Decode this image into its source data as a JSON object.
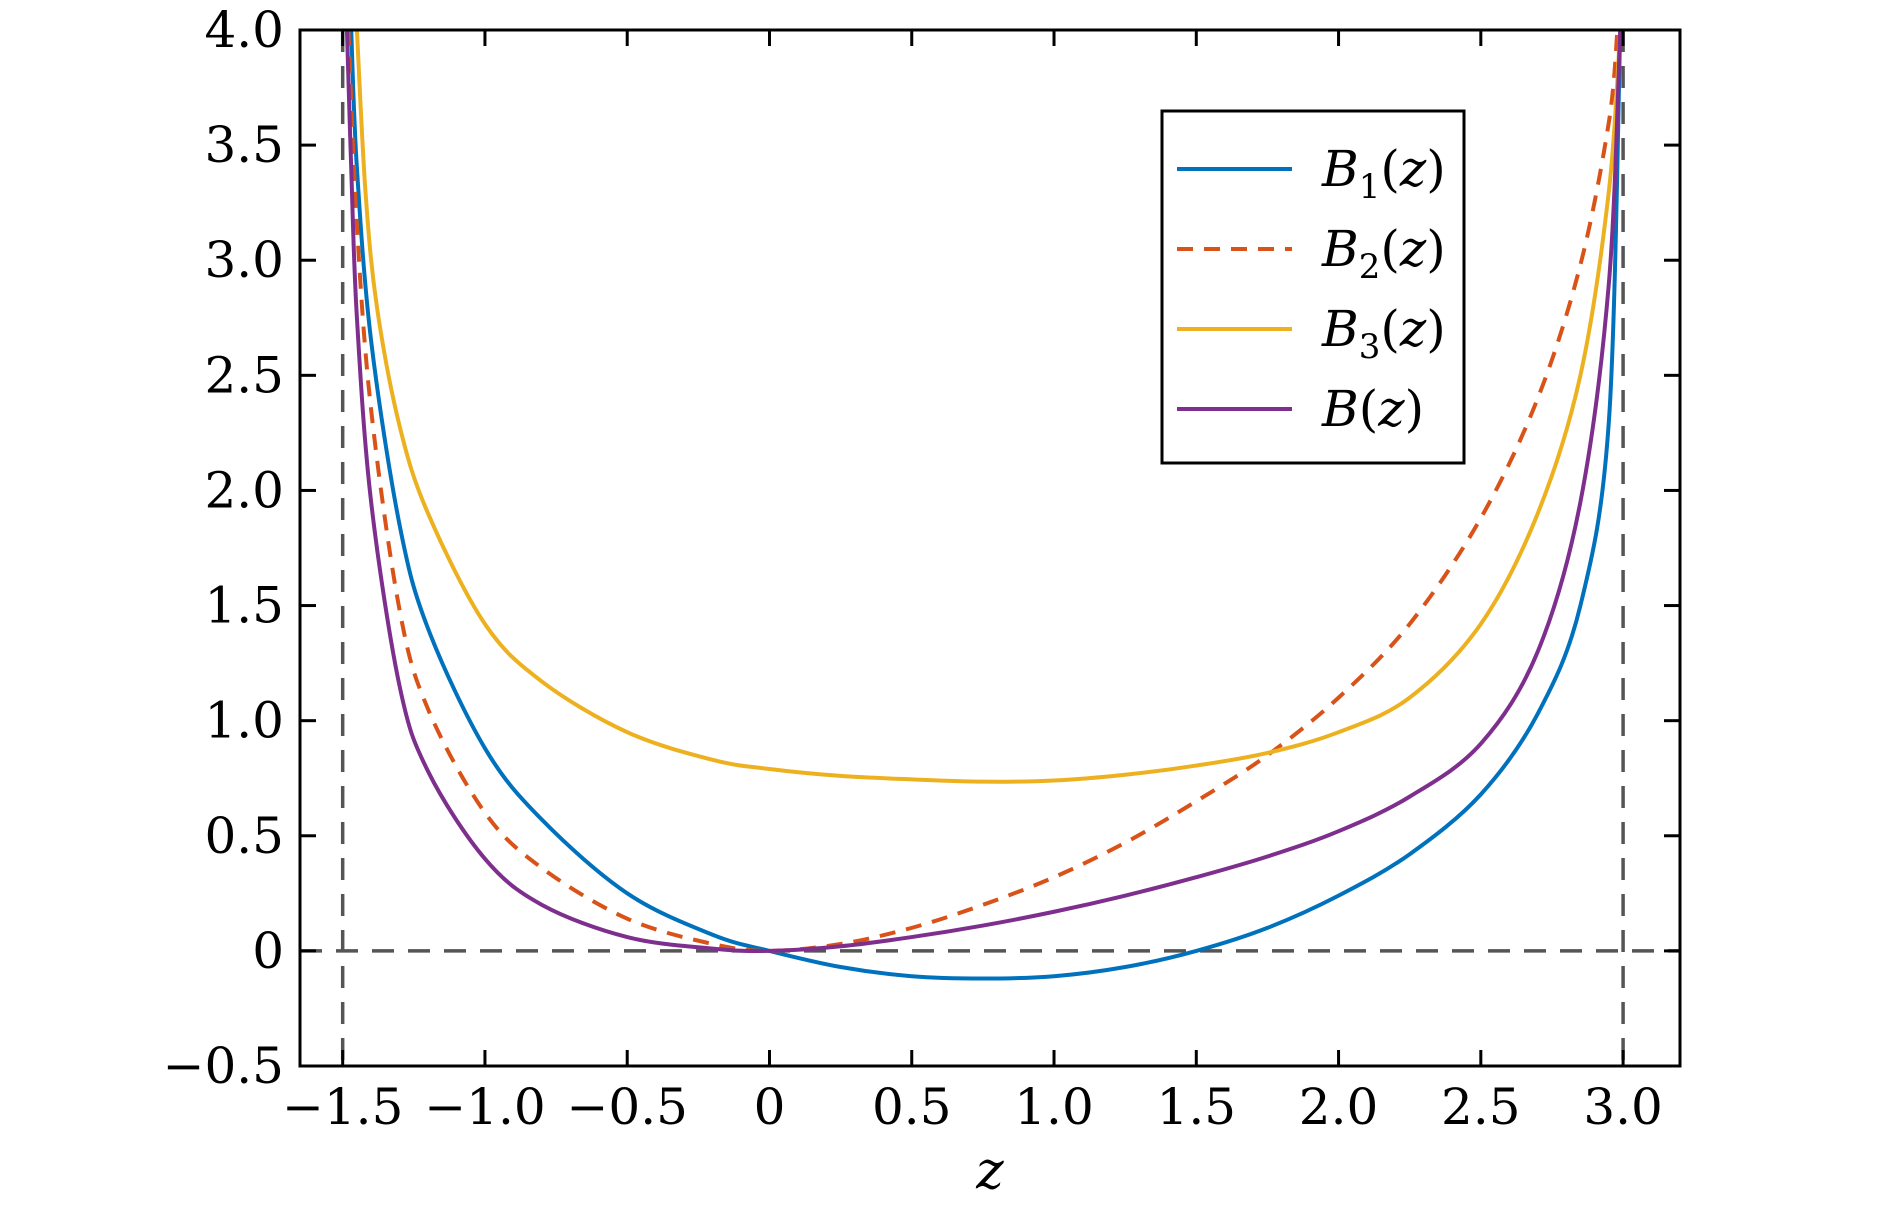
{
  "chart_data": {
    "type": "line",
    "title": "",
    "xlabel": "z",
    "ylabel": "",
    "xlim": [
      -1.65,
      3.2
    ],
    "ylim": [
      -0.5,
      4.0
    ],
    "xticks": [
      -1.5,
      -1.0,
      -0.5,
      0,
      0.5,
      1.0,
      1.5,
      2.0,
      2.5,
      3.0
    ],
    "xtick_labels": [
      "−1.5",
      "−1.0",
      "−0.5",
      "0",
      "0.5",
      "1.0",
      "1.5",
      "2.0",
      "2.5",
      "3.0"
    ],
    "yticks": [
      -0.5,
      0,
      0.5,
      1.0,
      1.5,
      2.0,
      2.5,
      3.0,
      3.5,
      4.0
    ],
    "ytick_labels": [
      "−0.5",
      "0",
      "0.5",
      "1.0",
      "1.5",
      "2.0",
      "2.5",
      "3.0",
      "3.5",
      "4.0"
    ],
    "grid": false,
    "legend_position": "top-right",
    "reference_lines": [
      {
        "orientation": "vertical",
        "value": -1.5,
        "style": "dashed",
        "color": "#555555"
      },
      {
        "orientation": "vertical",
        "value": 3.0,
        "style": "dashed",
        "color": "#555555"
      },
      {
        "orientation": "horizontal",
        "value": 0,
        "style": "dashed",
        "color": "#555555"
      }
    ],
    "series": [
      {
        "name": "B₁(z)",
        "label_main": "B",
        "label_sub": "1",
        "label_arg": "(z)",
        "color": "#0072BD",
        "dash": "solid",
        "x": [
          -1.47,
          -1.45,
          -1.4,
          -1.3,
          -1.2,
          -1.0,
          -0.8,
          -0.5,
          -0.2,
          0,
          0.25,
          0.5,
          0.75,
          1.0,
          1.25,
          1.5,
          1.75,
          2.0,
          2.25,
          2.5,
          2.7,
          2.85,
          2.95,
          2.99
        ],
        "y": [
          4.0,
          3.4,
          2.65,
          1.85,
          1.4,
          0.88,
          0.57,
          0.25,
          0.07,
          0,
          -0.07,
          -0.11,
          -0.12,
          -0.11,
          -0.07,
          0,
          0.1,
          0.24,
          0.42,
          0.68,
          1.03,
          1.5,
          2.3,
          4.0
        ]
      },
      {
        "name": "B₂(z)",
        "label_main": "B",
        "label_sub": "2",
        "label_arg": "(z)",
        "color": "#D95319",
        "dash": "dashed",
        "x": [
          -1.48,
          -1.45,
          -1.4,
          -1.3,
          -1.2,
          -1.0,
          -0.8,
          -0.5,
          -0.2,
          0,
          0.25,
          0.5,
          0.75,
          1.0,
          1.25,
          1.5,
          1.75,
          2.0,
          2.25,
          2.5,
          2.7,
          2.85,
          2.95,
          2.98
        ],
        "y": [
          4.0,
          3.15,
          2.35,
          1.48,
          1.05,
          0.6,
          0.36,
          0.14,
          0.03,
          0,
          0.03,
          0.1,
          0.2,
          0.32,
          0.47,
          0.65,
          0.85,
          1.1,
          1.42,
          1.88,
          2.4,
          2.98,
          3.6,
          4.0
        ]
      },
      {
        "name": "B₃(z)",
        "label_main": "B",
        "label_sub": "3",
        "label_arg": "(z)",
        "color": "#EDB120",
        "dash": "solid",
        "x": [
          -1.45,
          -1.42,
          -1.38,
          -1.3,
          -1.2,
          -1.0,
          -0.8,
          -0.5,
          -0.2,
          0,
          0.25,
          0.5,
          0.75,
          1.0,
          1.25,
          1.5,
          1.75,
          2.0,
          2.25,
          2.5,
          2.7,
          2.85,
          2.95,
          2.99
        ],
        "y": [
          4.0,
          3.3,
          2.8,
          2.28,
          1.9,
          1.42,
          1.17,
          0.95,
          0.83,
          0.79,
          0.76,
          0.745,
          0.735,
          0.74,
          0.765,
          0.805,
          0.86,
          0.95,
          1.1,
          1.42,
          1.9,
          2.5,
          3.3,
          4.0
        ]
      },
      {
        "name": "B(z)",
        "label_main": "B",
        "label_sub": "",
        "label_arg": "(z)",
        "color": "#7E2F8E",
        "dash": "solid",
        "x": [
          -1.485,
          -1.47,
          -1.45,
          -1.4,
          -1.3,
          -1.2,
          -1.0,
          -0.8,
          -0.5,
          -0.2,
          0,
          0.25,
          0.5,
          0.75,
          1.0,
          1.25,
          1.5,
          1.75,
          2.0,
          2.25,
          2.5,
          2.7,
          2.85,
          2.95,
          2.99
        ],
        "y": [
          4.0,
          3.4,
          2.75,
          1.95,
          1.15,
          0.78,
          0.4,
          0.2,
          0.06,
          0.01,
          0,
          0.02,
          0.06,
          0.11,
          0.17,
          0.24,
          0.32,
          0.41,
          0.52,
          0.67,
          0.9,
          1.3,
          1.95,
          2.9,
          4.0
        ]
      }
    ]
  }
}
